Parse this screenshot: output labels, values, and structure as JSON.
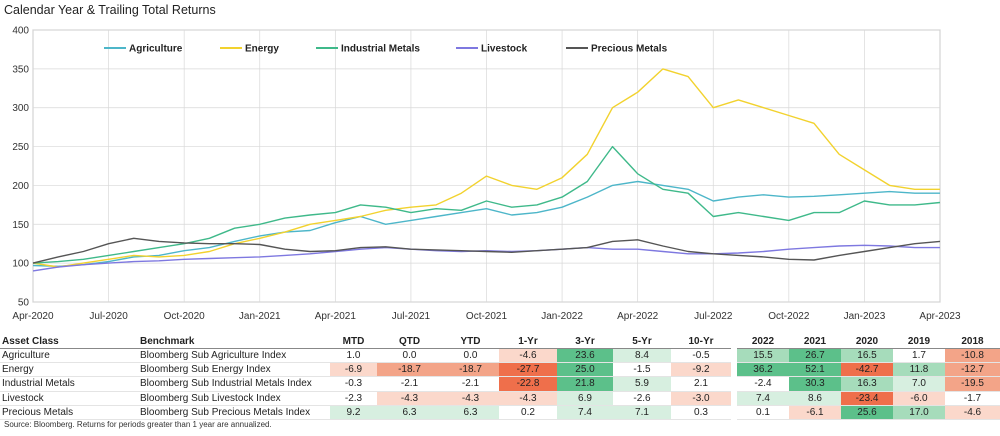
{
  "chart_data": {
    "type": "line",
    "title": "Calendar Year & Trailing Total Returns",
    "ylim": [
      50,
      400
    ],
    "yticks": [
      "400",
      "350",
      "300",
      "250",
      "200",
      "150",
      "100",
      "50"
    ],
    "xticks": [
      "Apr-2020",
      "Jul-2020",
      "Oct-2020",
      "Jan-2021",
      "Apr-2021",
      "Jul-2021",
      "Oct-2021",
      "Jan-2022",
      "Apr-2022",
      "Jul-2022",
      "Oct-2022",
      "Jan-2023",
      "Apr-2023"
    ],
    "x": [
      "Apr-2020",
      "May-2020",
      "Jun-2020",
      "Jul-2020",
      "Aug-2020",
      "Sep-2020",
      "Oct-2020",
      "Nov-2020",
      "Dec-2020",
      "Jan-2021",
      "Feb-2021",
      "Mar-2021",
      "Apr-2021",
      "May-2021",
      "Jun-2021",
      "Jul-2021",
      "Aug-2021",
      "Sep-2021",
      "Oct-2021",
      "Nov-2021",
      "Dec-2021",
      "Jan-2022",
      "Feb-2022",
      "Mar-2022",
      "Apr-2022",
      "May-2022",
      "Jun-2022",
      "Jul-2022",
      "Aug-2022",
      "Sep-2022",
      "Oct-2022",
      "Nov-2022",
      "Dec-2022",
      "Jan-2023",
      "Feb-2023",
      "Mar-2023",
      "Apr-2023"
    ],
    "series": [
      {
        "name": "Agriculture",
        "color": "#4db6c9",
        "values": [
          97,
          96,
          98,
          102,
          108,
          110,
          116,
          120,
          128,
          135,
          140,
          142,
          152,
          160,
          150,
          155,
          160,
          165,
          170,
          162,
          165,
          172,
          185,
          200,
          205,
          200,
          195,
          180,
          185,
          188,
          185,
          186,
          188,
          190,
          192,
          190,
          190
        ]
      },
      {
        "name": "Energy",
        "color": "#f2d22e",
        "values": [
          100,
          95,
          100,
          105,
          110,
          108,
          110,
          115,
          125,
          132,
          140,
          150,
          155,
          160,
          168,
          172,
          175,
          190,
          212,
          200,
          195,
          210,
          240,
          300,
          320,
          350,
          340,
          300,
          310,
          300,
          290,
          280,
          240,
          220,
          200,
          195,
          195
        ]
      },
      {
        "name": "Industrial Metals",
        "color": "#3fb98a",
        "values": [
          100,
          102,
          105,
          110,
          115,
          120,
          125,
          132,
          145,
          150,
          158,
          162,
          165,
          175,
          172,
          165,
          170,
          168,
          180,
          172,
          175,
          185,
          205,
          250,
          215,
          195,
          190,
          160,
          165,
          160,
          155,
          165,
          165,
          180,
          175,
          175,
          178
        ]
      },
      {
        "name": "Livestock",
        "color": "#7e78e0",
        "values": [
          90,
          95,
          98,
          100,
          102,
          103,
          105,
          106,
          107,
          108,
          110,
          112,
          115,
          118,
          120,
          118,
          116,
          115,
          116,
          115,
          116,
          118,
          120,
          118,
          118,
          115,
          112,
          112,
          113,
          115,
          118,
          120,
          122,
          123,
          122,
          120,
          120
        ]
      },
      {
        "name": "Precious Metals",
        "color": "#555555",
        "values": [
          100,
          108,
          115,
          125,
          132,
          128,
          126,
          125,
          125,
          124,
          118,
          115,
          116,
          120,
          121,
          118,
          117,
          116,
          115,
          114,
          116,
          118,
          120,
          128,
          130,
          122,
          115,
          112,
          110,
          108,
          105,
          104,
          110,
          115,
          120,
          125,
          128
        ]
      }
    ]
  },
  "table": {
    "headers": {
      "asset": "Asset Class",
      "bench": "Benchmark",
      "cols": [
        "MTD",
        "QTD",
        "YTD",
        "1-Yr",
        "3-Yr",
        "5-Yr",
        "10-Yr",
        "2022",
        "2021",
        "2020",
        "2019",
        "2018"
      ]
    },
    "rows": [
      {
        "asset": "Agriculture",
        "bench": "Bloomberg Sub Agriculture Index",
        "values": [
          "1.0",
          "0.0",
          "0.0",
          "-4.6",
          "23.6",
          "8.4",
          "-0.5",
          "15.5",
          "26.7",
          "16.5",
          "1.7",
          "-10.8"
        ]
      },
      {
        "asset": "Energy",
        "bench": "Bloomberg Sub Energy Index",
        "values": [
          "-6.9",
          "-18.7",
          "-18.7",
          "-27.7",
          "25.0",
          "-1.5",
          "-9.2",
          "36.2",
          "52.1",
          "-42.7",
          "11.8",
          "-12.7"
        ]
      },
      {
        "asset": "Industrial Metals",
        "bench": "Bloomberg Sub Industrial Metals Index",
        "values": [
          "-0.3",
          "-2.1",
          "-2.1",
          "-22.8",
          "21.8",
          "5.9",
          "2.1",
          "-2.4",
          "30.3",
          "16.3",
          "7.0",
          "-19.5"
        ]
      },
      {
        "asset": "Livestock",
        "bench": "Bloomberg Sub Livestock Index",
        "values": [
          "-2.3",
          "-4.3",
          "-4.3",
          "-4.3",
          "6.9",
          "-2.6",
          "-3.0",
          "7.4",
          "8.6",
          "-23.4",
          "-6.0",
          "-1.7"
        ]
      },
      {
        "asset": "Precious Metals",
        "bench": "Bloomberg Sub Precious Metals Index",
        "values": [
          "9.2",
          "6.3",
          "6.3",
          "0.2",
          "7.4",
          "7.1",
          "0.3",
          "0.1",
          "-6.1",
          "25.6",
          "17.0",
          "-4.6"
        ]
      }
    ]
  },
  "source": "Source: Bloomberg. Returns for periods greater than 1 year are annualized."
}
